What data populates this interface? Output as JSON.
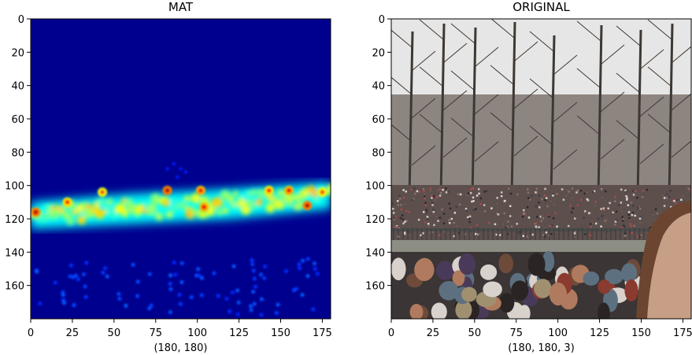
{
  "chart_data": [
    {
      "type": "heatmap",
      "title": "MAT",
      "xlabel": "(180, 180)",
      "ylabel": "",
      "shape": [
        180,
        180
      ],
      "colormap": "jet",
      "xlim": [
        0,
        180
      ],
      "ylim": [
        180,
        0
      ],
      "xticks": [
        0,
        25,
        50,
        75,
        100,
        125,
        150,
        175
      ],
      "yticks": [
        0,
        20,
        40,
        60,
        80,
        100,
        120,
        140,
        160
      ],
      "background_value": 0.0,
      "band": {
        "description": "dense crowd density band",
        "top_row_at_col": [
          [
            0,
            110
          ],
          [
            60,
            105
          ],
          [
            120,
            102
          ],
          [
            180,
            98
          ]
        ],
        "bottom_row_at_col": [
          [
            0,
            126
          ],
          [
            60,
            123
          ],
          [
            120,
            120
          ],
          [
            180,
            114
          ]
        ]
      },
      "hot_spots": [
        {
          "x": 3,
          "y": 116,
          "v": 0.95
        },
        {
          "x": 22,
          "y": 110,
          "v": 0.85
        },
        {
          "x": 43,
          "y": 104,
          "v": 0.8
        },
        {
          "x": 82,
          "y": 103,
          "v": 0.95
        },
        {
          "x": 102,
          "y": 103,
          "v": 0.9
        },
        {
          "x": 104,
          "y": 113,
          "v": 0.9
        },
        {
          "x": 143,
          "y": 103,
          "v": 0.85
        },
        {
          "x": 155,
          "y": 103,
          "v": 0.9
        },
        {
          "x": 166,
          "y": 112,
          "v": 0.95
        },
        {
          "x": 175,
          "y": 104,
          "v": 0.8
        }
      ],
      "sparse_region_rows": [
        140,
        180
      ],
      "sparse_value": 0.2
    },
    {
      "type": "image",
      "title": "ORIGINAL",
      "xlabel": "(180, 180, 3)",
      "ylabel": "",
      "shape": [
        180,
        180,
        3
      ],
      "xlim": [
        0,
        180
      ],
      "ylim": [
        180,
        0
      ],
      "xticks": [
        0,
        25,
        50,
        75,
        100,
        125,
        150,
        175
      ],
      "yticks": [
        0,
        20,
        40,
        60,
        80,
        100,
        120,
        140,
        160
      ],
      "scene": {
        "sky_rows": [
          0,
          60
        ],
        "trees_rows": [
          0,
          105
        ],
        "distant_crowd_rows": [
          100,
          133
        ],
        "fence_rows": [
          125,
          138
        ],
        "water_rows": [
          132,
          142
        ],
        "near_crowd_rows": [
          140,
          180
        ],
        "face_right_edge_cols": [
          148,
          180
        ]
      }
    }
  ]
}
